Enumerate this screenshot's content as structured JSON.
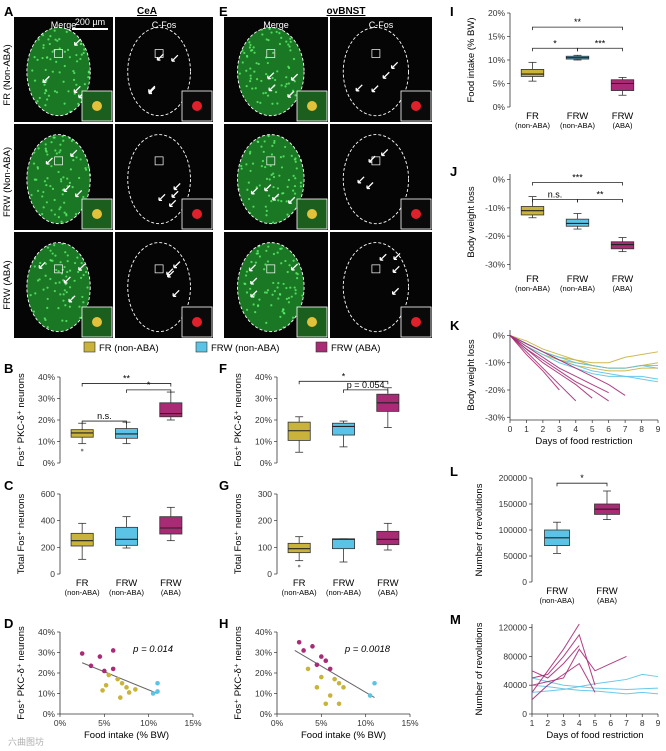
{
  "colors": {
    "FR": "#c9b33a",
    "FRW_non": "#5bc3e6",
    "FRW_ABA": "#a92a75",
    "micro_bg": "#050505",
    "green": "#2fc33a",
    "red": "#e0202a"
  },
  "panel_labels": [
    "A",
    "B",
    "C",
    "D",
    "E",
    "F",
    "G",
    "H",
    "I",
    "J",
    "K",
    "L",
    "M"
  ],
  "legend": [
    {
      "label": "FR (non-ABA)",
      "color": "#c9b33a"
    },
    {
      "label": "FRW (non-ABA)",
      "color": "#5bc3e6"
    },
    {
      "label": "FRW (ABA)",
      "color": "#a92a75"
    }
  ],
  "micrographs": {
    "A": {
      "region": "CeA",
      "col_headers": [
        "Merge",
        "C-Fos"
      ],
      "scale_bar": "200 µm",
      "row_labels": [
        "FR (Non-ABA)",
        "FRW (Non-ABA)",
        "FRW (ABA)"
      ]
    },
    "E": {
      "region": "ovBNST",
      "col_headers": [
        "Merge",
        "C-Fos"
      ]
    }
  },
  "group_ticks": [
    {
      "main": "FR",
      "sub": "(non-ABA)"
    },
    {
      "main": "FRW",
      "sub": "(non-ABA)"
    },
    {
      "main": "FRW",
      "sub": "(ABA)"
    }
  ],
  "group_ticks_L": [
    {
      "main": "FRW",
      "sub": "(non-ABA)"
    },
    {
      "main": "FRW",
      "sub": "(ABA)"
    }
  ],
  "watermark": "六曲图坊",
  "chart_data": [
    {
      "panel": "B",
      "type": "box",
      "ylabel": "Fos⁺ PKC-δ⁺ neurons",
      "ylim": [
        0,
        40
      ],
      "yticks": [
        0,
        10,
        20,
        30,
        40
      ],
      "ytick_labels": [
        "0%",
        "10%",
        "20%",
        "30%",
        "40%"
      ],
      "boxes": [
        {
          "min": 9,
          "q1": 12,
          "med": 14,
          "q3": 15.5,
          "max": 18.5
        },
        {
          "min": 9,
          "q1": 11.5,
          "med": 13.5,
          "q3": 16,
          "max": 19
        },
        {
          "min": 20,
          "q1": 21.5,
          "med": 23,
          "q3": 28,
          "max": 33
        }
      ],
      "outliers": [
        [
          0,
          6
        ]
      ],
      "sig": [
        {
          "a": 0,
          "b": 2,
          "y": 37,
          "text": "**"
        },
        {
          "a": 1,
          "b": 2,
          "y": 34,
          "text": "*"
        },
        {
          "a": 0,
          "b": 1,
          "y": 19.5,
          "text": "n.s."
        }
      ]
    },
    {
      "panel": "C",
      "type": "box",
      "ylabel": "Total Fos⁺ neurons",
      "ylim": [
        0,
        600
      ],
      "yticks": [
        0,
        200,
        400,
        600
      ],
      "ytick_labels": [
        "0",
        "200",
        "400",
        "600"
      ],
      "boxes": [
        {
          "min": 110,
          "q1": 210,
          "med": 250,
          "q3": 305,
          "max": 380
        },
        {
          "min": 195,
          "q1": 215,
          "med": 260,
          "q3": 350,
          "max": 430
        },
        {
          "min": 250,
          "q1": 300,
          "med": 345,
          "q3": 430,
          "max": 500
        }
      ],
      "outliers": [],
      "sig": []
    },
    {
      "panel": "D",
      "type": "scatter",
      "ylabel": "Fos⁺ PKC-δ⁺ neurons",
      "xlabel": "Food intake (% BW)",
      "xlim": [
        0,
        15
      ],
      "ylim": [
        0,
        40
      ],
      "xticks": [
        0,
        5,
        10,
        15
      ],
      "xtick_labels": [
        "0%",
        "5%",
        "10%",
        "15%"
      ],
      "yticks": [
        0,
        10,
        20,
        30,
        40
      ],
      "ytick_labels": [
        "0%",
        "10%",
        "20%",
        "30%",
        "40%"
      ],
      "annotation": "p = 0.014",
      "fit": {
        "x0": 2.5,
        "y0": 25,
        "x1": 11,
        "y1": 10
      },
      "points": [
        [
          2.5,
          29.5
        ],
        [
          3.5,
          23.5
        ],
        [
          4.5,
          28
        ],
        [
          5,
          21
        ],
        [
          6,
          22
        ],
        [
          6,
          31
        ],
        [
          5.5,
          19
        ],
        [
          6.5,
          17
        ],
        [
          7,
          15
        ],
        [
          7.5,
          13
        ],
        [
          8.5,
          12
        ],
        [
          6.8,
          8
        ],
        [
          7.8,
          10.5
        ],
        [
          4.8,
          11.5
        ],
        [
          5.2,
          14
        ],
        [
          10.5,
          10
        ],
        [
          11,
          15
        ],
        [
          11,
          11
        ]
      ],
      "point_groups": [
        2,
        2,
        2,
        2,
        2,
        2,
        0,
        0,
        0,
        0,
        0,
        0,
        0,
        0,
        0,
        1,
        1,
        1
      ]
    },
    {
      "panel": "F",
      "type": "box",
      "ylabel": "Fos⁺ PKC-δ⁺ neurons",
      "ylim": [
        0,
        40
      ],
      "yticks": [
        0,
        10,
        20,
        30,
        40
      ],
      "ytick_labels": [
        "0%",
        "10%",
        "20%",
        "30%",
        "40%"
      ],
      "boxes": [
        {
          "min": 5,
          "q1": 10.5,
          "med": 15,
          "q3": 19,
          "max": 21.5
        },
        {
          "min": 7.5,
          "q1": 13,
          "med": 17,
          "q3": 18.5,
          "max": 19.5
        },
        {
          "min": 16.5,
          "q1": 24,
          "med": 28,
          "q3": 32,
          "max": 35
        }
      ],
      "outliers": [],
      "sig": [
        {
          "a": 0,
          "b": 2,
          "y": 38,
          "text": "*"
        },
        {
          "a": 1,
          "b": 2,
          "y": 34,
          "text": "p = 0.054"
        }
      ]
    },
    {
      "panel": "G",
      "type": "box",
      "ylabel": "Total Fos⁺ neurons",
      "ylim": [
        0,
        300
      ],
      "yticks": [
        0,
        100,
        200,
        300
      ],
      "ytick_labels": [
        "0",
        "100",
        "200",
        "300"
      ],
      "boxes": [
        {
          "min": 50,
          "q1": 80,
          "med": 95,
          "q3": 115,
          "max": 140
        },
        {
          "min": 45,
          "q1": 95,
          "med": 130,
          "q3": 132,
          "max": 132
        },
        {
          "min": 90,
          "q1": 110,
          "med": 130,
          "q3": 160,
          "max": 190
        }
      ],
      "outliers": [
        [
          0,
          30
        ]
      ],
      "sig": []
    },
    {
      "panel": "H",
      "type": "scatter",
      "ylabel": "Fos⁺ PKC-δ⁺ neurons",
      "xlabel": "Food intake (% BW)",
      "xlim": [
        0,
        15
      ],
      "ylim": [
        0,
        40
      ],
      "xticks": [
        0,
        5,
        10,
        15
      ],
      "xtick_labels": [
        "0%",
        "5%",
        "10%",
        "15%"
      ],
      "yticks": [
        0,
        10,
        20,
        30,
        40
      ],
      "ytick_labels": [
        "0%",
        "10%",
        "20%",
        "30%",
        "40%"
      ],
      "annotation": "p = 0.0018",
      "fit": {
        "x0": 2,
        "y0": 31,
        "x1": 11,
        "y1": 8
      },
      "points": [
        [
          2.5,
          35
        ],
        [
          3,
          31
        ],
        [
          4,
          33
        ],
        [
          5,
          28
        ],
        [
          5.5,
          26
        ],
        [
          4.5,
          24
        ],
        [
          6,
          22
        ],
        [
          3.5,
          22
        ],
        [
          5,
          18
        ],
        [
          6.5,
          17
        ],
        [
          7,
          15
        ],
        [
          7.5,
          13
        ],
        [
          4.5,
          13
        ],
        [
          6,
          9
        ],
        [
          5.5,
          5
        ],
        [
          7,
          5
        ],
        [
          10.5,
          9
        ],
        [
          11,
          15
        ]
      ],
      "point_groups": [
        2,
        2,
        2,
        2,
        2,
        2,
        2,
        0,
        0,
        0,
        0,
        0,
        0,
        0,
        0,
        0,
        1,
        1
      ]
    },
    {
      "panel": "I",
      "type": "box",
      "ylabel": "Food intake (% BW)",
      "ylim": [
        0,
        20
      ],
      "yticks": [
        0,
        5,
        10,
        15,
        20
      ],
      "ytick_labels": [
        "0%",
        "5%",
        "10%",
        "15%",
        "20%"
      ],
      "boxes": [
        {
          "min": 5.5,
          "q1": 6.5,
          "med": 7,
          "q3": 8,
          "max": 9.5
        },
        {
          "min": 10,
          "q1": 10.2,
          "med": 10.5,
          "q3": 10.8,
          "max": 11
        },
        {
          "min": 2.5,
          "q1": 3.5,
          "med": 5,
          "q3": 5.8,
          "max": 6.3
        }
      ],
      "outliers": [],
      "sig": [
        {
          "a": 0,
          "b": 2,
          "y": 17,
          "text": "**"
        },
        {
          "a": 0,
          "b": 1,
          "y": 12.5,
          "text": "*"
        },
        {
          "a": 1,
          "b": 2,
          "y": 12.5,
          "text": "***"
        }
      ]
    },
    {
      "panel": "J",
      "type": "box",
      "ylabel": "Body weight loss",
      "ylim": [
        -32,
        2
      ],
      "yticks": [
        0,
        -10,
        -20,
        -30
      ],
      "ytick_labels": [
        "0%",
        "-10%",
        "-20%",
        "-30%"
      ],
      "boxes": [
        {
          "min": -13.5,
          "q1": -12.5,
          "med": -11,
          "q3": -9.5,
          "max": -6
        },
        {
          "min": -17.5,
          "q1": -16.5,
          "med": -15.5,
          "q3": -14,
          "max": -12
        },
        {
          "min": -25.5,
          "q1": -24.5,
          "med": -23,
          "q3": -22,
          "max": -20.5
        }
      ],
      "outliers": [],
      "sig": [
        {
          "a": 0,
          "b": 2,
          "y": -1,
          "text": "***"
        },
        {
          "a": 0,
          "b": 1,
          "y": -7,
          "text": "n.s."
        },
        {
          "a": 1,
          "b": 2,
          "y": -7,
          "text": "**"
        }
      ]
    },
    {
      "panel": "K",
      "type": "line",
      "ylabel": "Body weight loss",
      "xlabel": "Days of food restriction",
      "xlim": [
        0,
        9
      ],
      "ylim": [
        -31,
        2
      ],
      "xticks": [
        0,
        1,
        2,
        3,
        4,
        5,
        6,
        7,
        8,
        9
      ],
      "yticks": [
        0,
        -10,
        -20,
        -30
      ],
      "ytick_labels": [
        "0%",
        "-10%",
        "-20%",
        "-30%"
      ],
      "series": [
        {
          "group": 0,
          "x": [
            0,
            1,
            2,
            3,
            4,
            5,
            6,
            7,
            8,
            9
          ],
          "y": [
            0,
            -3,
            -6,
            -8,
            -9,
            -10,
            -10,
            -8,
            -7,
            -6
          ]
        },
        {
          "group": 0,
          "x": [
            0,
            1,
            2,
            3,
            4,
            5,
            6,
            7,
            8,
            9
          ],
          "y": [
            0,
            -4,
            -7,
            -9,
            -10,
            -11,
            -12,
            -12,
            -11,
            -11
          ]
        },
        {
          "group": 0,
          "x": [
            0,
            1,
            2,
            3,
            4,
            5,
            6,
            7,
            8,
            9
          ],
          "y": [
            0,
            -2,
            -5,
            -7,
            -9,
            -11,
            -12,
            -12,
            -11,
            -10
          ]
        },
        {
          "group": 0,
          "x": [
            0,
            1,
            2,
            3,
            4,
            5,
            6,
            7,
            8,
            9
          ],
          "y": [
            0,
            -3,
            -6,
            -9,
            -11,
            -12,
            -13,
            -13,
            -12,
            -12
          ]
        },
        {
          "group": 1,
          "x": [
            0,
            1,
            2,
            3,
            4,
            5,
            6,
            7,
            8,
            9
          ],
          "y": [
            0,
            -3,
            -6,
            -9,
            -11,
            -13,
            -14,
            -15,
            -15,
            -16
          ]
        },
        {
          "group": 1,
          "x": [
            0,
            1,
            2,
            3,
            4,
            5,
            6,
            7,
            8,
            9
          ],
          "y": [
            0,
            -4,
            -7,
            -10,
            -12,
            -14,
            -15,
            -15,
            -16,
            -17
          ]
        },
        {
          "group": 1,
          "x": [
            0,
            1,
            2,
            3,
            4,
            5,
            6,
            7,
            8,
            9
          ],
          "y": [
            0,
            -3,
            -6,
            -8,
            -10,
            -11,
            -12,
            -12,
            -11,
            -12
          ]
        },
        {
          "group": 2,
          "x": [
            0,
            1,
            2,
            3,
            4
          ],
          "y": [
            0,
            -6,
            -12,
            -18,
            -24
          ]
        },
        {
          "group": 2,
          "x": [
            0,
            1,
            2,
            3,
            4,
            5
          ],
          "y": [
            0,
            -5,
            -10,
            -14,
            -18,
            -23
          ]
        },
        {
          "group": 2,
          "x": [
            0,
            1,
            2,
            3,
            4,
            5,
            6
          ],
          "y": [
            0,
            -4,
            -8,
            -12,
            -15,
            -18,
            -21
          ]
        },
        {
          "group": 2,
          "x": [
            0,
            1,
            2,
            3,
            4,
            5,
            6,
            7
          ],
          "y": [
            0,
            -3,
            -6,
            -9,
            -12,
            -15,
            -18,
            -22
          ]
        },
        {
          "group": 2,
          "x": [
            0,
            1,
            2,
            3,
            4,
            5,
            6
          ],
          "y": [
            0,
            -5,
            -9,
            -13,
            -17,
            -20,
            -24
          ]
        },
        {
          "group": 2,
          "x": [
            0,
            1,
            2,
            3
          ],
          "y": [
            0,
            -7,
            -13,
            -20
          ]
        }
      ]
    },
    {
      "panel": "L",
      "type": "box",
      "ylabel": "Number of revolutions",
      "ylim": [
        0,
        200000
      ],
      "yticks": [
        0,
        50000,
        100000,
        150000,
        200000
      ],
      "ytick_labels": [
        "0",
        "50000",
        "100000",
        "150000",
        "200000"
      ],
      "boxes": [
        {
          "min": 55000,
          "q1": 70000,
          "med": 85000,
          "q3": 100000,
          "max": 115000
        },
        {
          "min": 120000,
          "q1": 130000,
          "med": 140000,
          "q3": 150000,
          "max": 175000
        }
      ],
      "outliers": [],
      "sig": [
        {
          "a": 0,
          "b": 1,
          "y": 190000,
          "text": "*"
        }
      ]
    },
    {
      "panel": "M",
      "type": "line",
      "ylabel": "Number of revolutions",
      "xlabel": "Days of food restriction",
      "xlim": [
        1,
        9
      ],
      "ylim": [
        0,
        125000
      ],
      "xticks": [
        1,
        2,
        3,
        4,
        5,
        6,
        7,
        8,
        9
      ],
      "yticks": [
        0,
        40000,
        80000,
        120000
      ],
      "ytick_labels": [
        "0",
        "40000",
        "80000",
        "120000"
      ],
      "series": [
        {
          "group": 1,
          "x": [
            1,
            2,
            3,
            4,
            5,
            6,
            7,
            8,
            9
          ],
          "y": [
            40000,
            38000,
            35000,
            33000,
            32000,
            30000,
            28000,
            30000,
            28000
          ]
        },
        {
          "group": 1,
          "x": [
            1,
            2,
            3,
            4,
            5,
            6,
            7,
            8,
            9
          ],
          "y": [
            30000,
            32000,
            34000,
            38000,
            42000,
            45000,
            48000,
            55000,
            52000
          ]
        },
        {
          "group": 1,
          "x": [
            1,
            2,
            3,
            4,
            5,
            6,
            7,
            8,
            9
          ],
          "y": [
            50000,
            45000,
            40000,
            38000,
            36000,
            35000,
            34000,
            35000,
            36000
          ]
        },
        {
          "group": 2,
          "x": [
            1,
            2,
            3,
            4
          ],
          "y": [
            30000,
            60000,
            90000,
            125000
          ]
        },
        {
          "group": 2,
          "x": [
            1,
            2,
            3,
            4,
            5
          ],
          "y": [
            50000,
            55000,
            80000,
            110000,
            40000
          ]
        },
        {
          "group": 2,
          "x": [
            1,
            2,
            3,
            4,
            5
          ],
          "y": [
            20000,
            40000,
            55000,
            70000,
            30000
          ]
        },
        {
          "group": 2,
          "x": [
            1,
            2,
            3,
            4,
            5,
            6,
            7
          ],
          "y": [
            40000,
            45000,
            50000,
            90000,
            60000,
            70000,
            80000
          ]
        },
        {
          "group": 2,
          "x": [
            1,
            2,
            3,
            4
          ],
          "y": [
            60000,
            50000,
            70000,
            95000
          ]
        }
      ]
    }
  ]
}
